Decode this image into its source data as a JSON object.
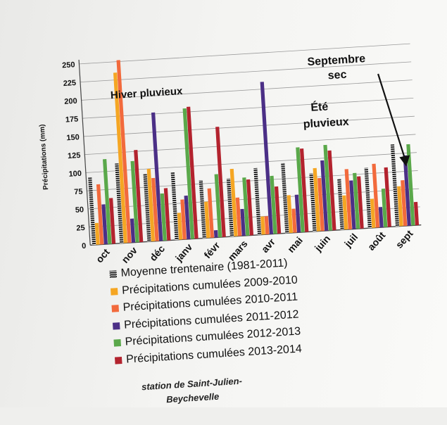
{
  "chart_data": {
    "type": "bar",
    "categories": [
      "oct",
      "nov",
      "déc",
      "janv",
      "févr",
      "mars",
      "avr",
      "mai",
      "juin",
      "juil",
      "août",
      "sept"
    ],
    "ylabel": "Précipitations (mm)",
    "ylim": [
      0,
      250
    ],
    "yticks": [
      0,
      25,
      50,
      75,
      100,
      125,
      150,
      175,
      200,
      225,
      250
    ],
    "grid": true,
    "legend_position": "bottom",
    "series": [
      {
        "name": "Moyenne trentenaire (1981-2011)",
        "color": "#222222",
        "pattern": "striped",
        "values": [
          93,
          110,
          93,
          93,
          80,
          80,
          92,
          97,
          80,
          70,
          83,
          113
        ]
      },
      {
        "name": "Précipitations cumulées 2009-2010",
        "color": "#f5a623",
        "values": [
          30,
          235,
          100,
          37,
          50,
          93,
          25,
          52,
          87,
          47,
          40,
          55
        ]
      },
      {
        "name": "Précipitations cumulées 2010-2011",
        "color": "#f26a3c",
        "values": [
          83,
          252,
          87,
          55,
          68,
          53,
          25,
          33,
          73,
          83,
          88,
          63
        ]
      },
      {
        "name": "Précipitations cumulées 2011-2012",
        "color": "#4b2f86",
        "values": [
          55,
          33,
          177,
          60,
          10,
          37,
          210,
          52,
          97,
          67,
          28,
          97
        ]
      },
      {
        "name": "Précipitations cumulées 2012-2013",
        "color": "#5aa84a",
        "values": [
          117,
          112,
          65,
          180,
          87,
          80,
          80,
          117,
          118,
          77,
          53,
          112
        ]
      },
      {
        "name": "Précipitations cumulées 2013-2014",
        "color": "#b3232e",
        "values": [
          63,
          127,
          72,
          182,
          152,
          77,
          65,
          115,
          110,
          72,
          82,
          32
        ]
      }
    ],
    "annotations": [
      {
        "text": "Hiver pluvieux"
      },
      {
        "text": "Septembre"
      },
      {
        "text": "sec"
      },
      {
        "text": "Été"
      },
      {
        "text": "pluvieux"
      }
    ]
  },
  "source_line1": "station de Saint-Julien-",
  "source_line2": "Beychevelle"
}
